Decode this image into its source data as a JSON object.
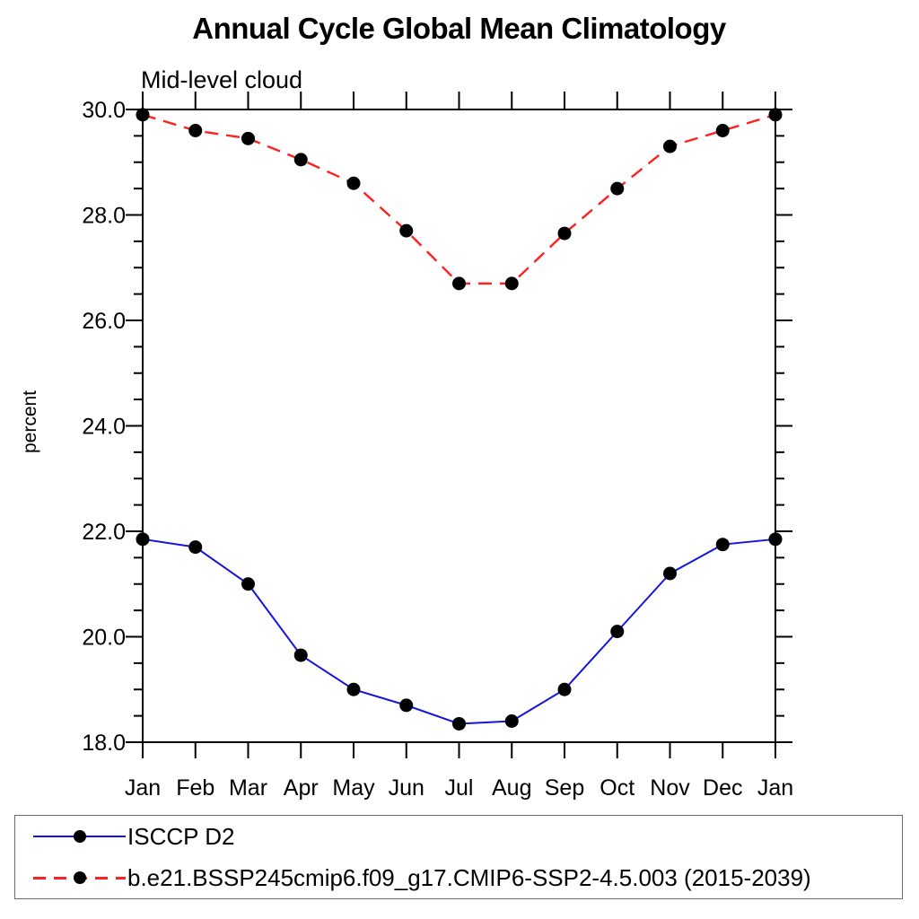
{
  "chart": {
    "title": "Annual Cycle Global Mean Climatology",
    "subtitle": "Mid-level cloud",
    "ylabel": "percent"
  },
  "legend": {
    "items": [
      {
        "label": "ISCCP D2",
        "color": "#1414e0",
        "style": "solid",
        "marker": "filled-circle-icon"
      },
      {
        "label": "b.e21.BSSP245cmip6.f09_g17.CMIP6-SSP2-4.5.003 (2015-2039)",
        "color": "#ff2020",
        "style": "dashed",
        "marker": "filled-circle-icon"
      }
    ]
  },
  "chart_data": {
    "type": "line",
    "title": "Annual Cycle Global Mean Climatology",
    "subtitle": "Mid-level cloud",
    "xlabel": "",
    "ylabel": "percent",
    "categories": [
      "Jan",
      "Feb",
      "Mar",
      "Apr",
      "May",
      "Jun",
      "Jul",
      "Aug",
      "Sep",
      "Oct",
      "Nov",
      "Dec",
      "Jan"
    ],
    "series": [
      {
        "name": "ISCCP D2",
        "color": "#1414e0",
        "line_style": "solid",
        "marker": "filled-circle",
        "marker_color": "#000000",
        "values": [
          21.85,
          21.7,
          21.0,
          19.65,
          19.0,
          18.7,
          18.35,
          18.4,
          19.0,
          20.1,
          21.2,
          21.75,
          21.85
        ]
      },
      {
        "name": "b.e21.BSSP245cmip6.f09_g17.CMIP6-SSP2-4.5.003 (2015-2039)",
        "color": "#ff2020",
        "line_style": "dashed",
        "marker": "filled-circle",
        "marker_color": "#000000",
        "values": [
          29.9,
          29.6,
          29.45,
          29.05,
          28.6,
          27.7,
          26.7,
          26.7,
          27.65,
          28.5,
          29.3,
          29.6,
          29.9
        ]
      }
    ],
    "ylim": [
      18.0,
      30.0
    ],
    "ytick_step": 2.0,
    "yminor_step": 0.5,
    "ytick_labels": [
      "18.0",
      "20.0",
      "22.0",
      "24.0",
      "26.0",
      "28.0",
      "30.0"
    ],
    "grid": false,
    "axis_color": "#000000",
    "legend_position": "bottom-left-box"
  }
}
